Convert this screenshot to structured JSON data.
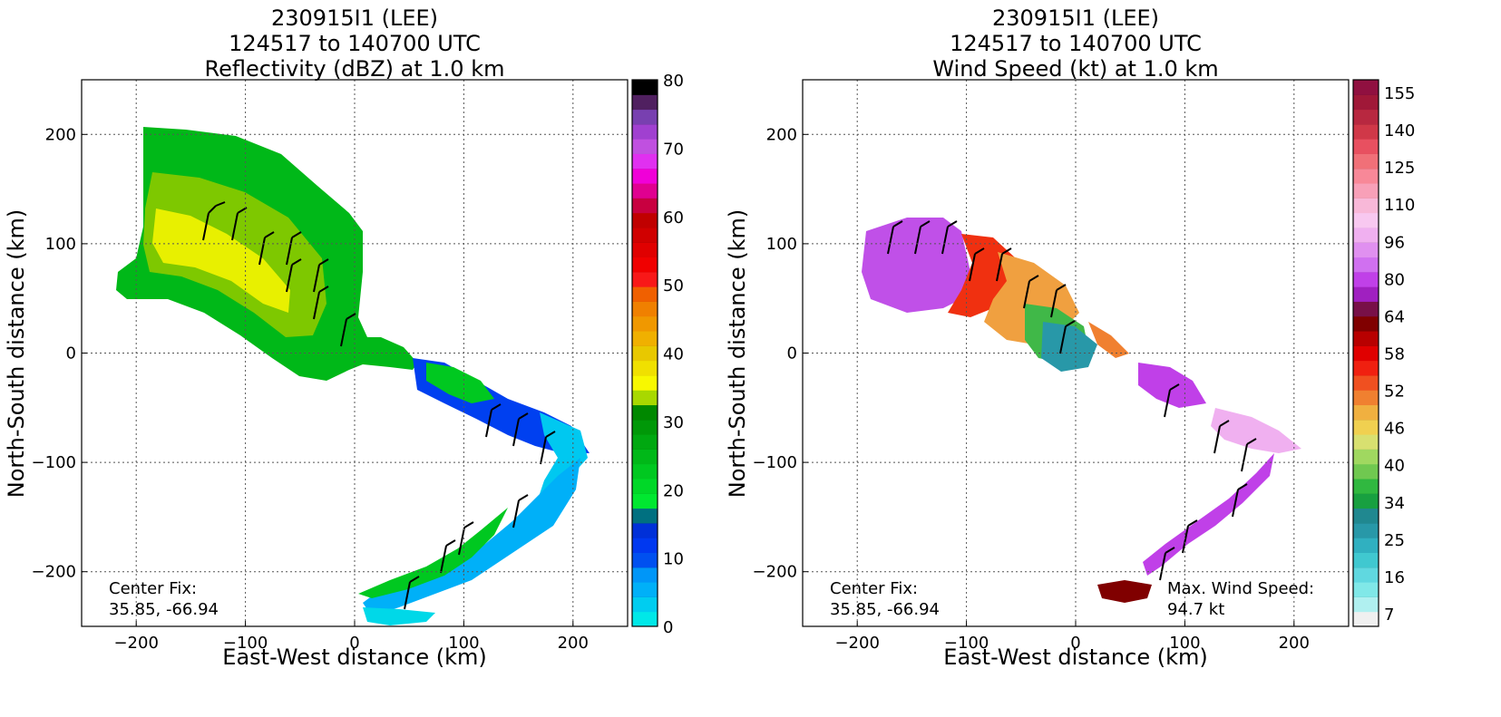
{
  "chart_data": [
    {
      "type": "heatmap",
      "title_lines": [
        "230915I1 (LEE)",
        "124517 to 140700 UTC",
        "Reflectivity (dBZ) at 1.0 km"
      ],
      "xlabel": "East-West distance (km)",
      "ylabel": "North-South distance (km)",
      "xlim": [
        -250,
        250
      ],
      "ylim": [
        -250,
        250
      ],
      "xticks": [
        -200,
        -100,
        0,
        100,
        200
      ],
      "yticks": [
        -200,
        -100,
        0,
        100,
        200
      ],
      "xtick_labels": [
        "−200",
        "−100",
        "0",
        "100",
        "200"
      ],
      "ytick_labels": [
        "−200",
        "−100",
        "0",
        "100",
        "200"
      ],
      "grid": true,
      "annotation": [
        "Center Fix:",
        "35.85, -66.94"
      ],
      "colorbar": {
        "min": 0,
        "max": 80,
        "tick_values": [
          0,
          10,
          20,
          30,
          40,
          50,
          60,
          70,
          80
        ],
        "tick_labels": [
          "0",
          "10",
          "20",
          "30",
          "40",
          "50",
          "60",
          "70",
          "80"
        ],
        "colors": [
          "#00e8e8",
          "#00cdf0",
          "#00b0f8",
          "#0096f8",
          "#0050f0",
          "#0038f0",
          "#0030d8",
          "#007080",
          "#00e830",
          "#00d828",
          "#00c820",
          "#00b818",
          "#00a810",
          "#009808",
          "#008800",
          "#a8d800",
          "#f8f800",
          "#f0e000",
          "#e8c800",
          "#f0b000",
          "#f09800",
          "#f08000",
          "#f06000",
          "#f81818",
          "#f00000",
          "#e00000",
          "#d00000",
          "#c00000",
          "#c80040",
          "#e00090",
          "#f000d8",
          "#e030f0",
          "#c050e0",
          "#a040d0",
          "#7840b0",
          "#502060",
          "#000000"
        ]
      },
      "field_values": {
        "core": 36,
        "main": 28,
        "band": 12
      },
      "field_note_values_dbz": true
    },
    {
      "type": "heatmap",
      "title_lines": [
        "230915I1 (LEE)",
        "124517 to 140700 UTC",
        "Wind Speed (kt) at 1.0 km"
      ],
      "xlabel": "East-West distance (km)",
      "ylabel": "North-South distance (km)",
      "xlim": [
        -250,
        250
      ],
      "ylim": [
        -250,
        250
      ],
      "xticks": [
        -200,
        -100,
        0,
        100,
        200
      ],
      "yticks": [
        -200,
        -100,
        0,
        100,
        200
      ],
      "xtick_labels": [
        "−200",
        "−100",
        "0",
        "100",
        "200"
      ],
      "ytick_labels": [
        "−200",
        "−100",
        "0",
        "100",
        "200"
      ],
      "grid": true,
      "annotation": [
        "Center Fix:",
        "35.85, -66.94"
      ],
      "annotation2": [
        "Max. Wind Speed:",
        "94.7 kt"
      ],
      "colorbar": {
        "tick_labels": [
          "7",
          "16",
          "25",
          "34",
          "40",
          "46",
          "52",
          "58",
          "64",
          "80",
          "96",
          "110",
          "125",
          "140",
          "155"
        ],
        "colors": [
          "#f0f0f0",
          "#b0f0f0",
          "#80e8e8",
          "#60d8e0",
          "#40c8d0",
          "#30b0c0",
          "#2898a8",
          "#208890",
          "#18a040",
          "#30b840",
          "#70c850",
          "#a0d860",
          "#d8e070",
          "#f0d050",
          "#f0b040",
          "#f08030",
          "#f05020",
          "#f02010",
          "#e00000",
          "#b80000",
          "#800000",
          "#781048",
          "#a020c0",
          "#c040e8",
          "#d070f0",
          "#e090f0",
          "#f0b0f0",
          "#f8c8f0",
          "#f8b8d8",
          "#f8a0b8",
          "#f88898",
          "#f07078",
          "#e85060",
          "#d03848",
          "#b82840",
          "#a01838",
          "#901040"
        ]
      },
      "max_wind_kt": 94.7
    }
  ]
}
